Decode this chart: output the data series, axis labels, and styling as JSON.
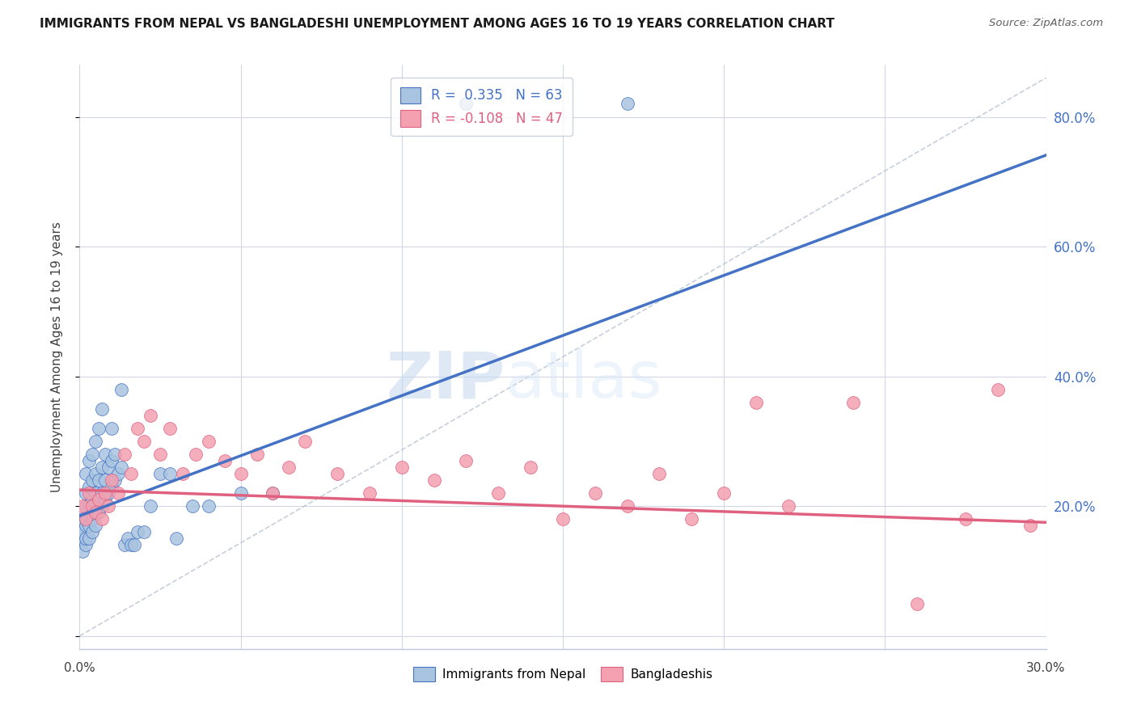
{
  "title": "IMMIGRANTS FROM NEPAL VS BANGLADESHI UNEMPLOYMENT AMONG AGES 16 TO 19 YEARS CORRELATION CHART",
  "source": "Source: ZipAtlas.com",
  "ylabel": "Unemployment Among Ages 16 to 19 years",
  "xmin": 0.0,
  "xmax": 0.3,
  "ymin": -0.02,
  "ymax": 0.88,
  "blue_R": 0.335,
  "blue_N": 63,
  "pink_R": -0.108,
  "pink_N": 47,
  "blue_color": "#a8c4e0",
  "pink_color": "#f4a0b0",
  "blue_trend_color": "#4472C4",
  "pink_trend_color": "#E06080",
  "ref_line_color": "#b8c4d4",
  "watermark_zip": "ZIP",
  "watermark_atlas": "atlas",
  "legend_label_blue": "Immigrants from Nepal",
  "legend_label_pink": "Bangladeshis",
  "blue_scatter_x": [
    0.001,
    0.001,
    0.001,
    0.001,
    0.002,
    0.002,
    0.002,
    0.002,
    0.002,
    0.002,
    0.002,
    0.003,
    0.003,
    0.003,
    0.003,
    0.003,
    0.004,
    0.004,
    0.004,
    0.004,
    0.004,
    0.005,
    0.005,
    0.005,
    0.005,
    0.005,
    0.006,
    0.006,
    0.006,
    0.006,
    0.007,
    0.007,
    0.007,
    0.007,
    0.008,
    0.008,
    0.008,
    0.009,
    0.009,
    0.01,
    0.01,
    0.01,
    0.011,
    0.011,
    0.012,
    0.013,
    0.013,
    0.014,
    0.015,
    0.016,
    0.017,
    0.018,
    0.02,
    0.022,
    0.025,
    0.028,
    0.03,
    0.035,
    0.04,
    0.05,
    0.06,
    0.12,
    0.17
  ],
  "blue_scatter_y": [
    0.13,
    0.15,
    0.16,
    0.18,
    0.14,
    0.15,
    0.17,
    0.18,
    0.2,
    0.22,
    0.25,
    0.15,
    0.17,
    0.2,
    0.23,
    0.27,
    0.16,
    0.18,
    0.21,
    0.24,
    0.28,
    0.17,
    0.19,
    0.22,
    0.25,
    0.3,
    0.19,
    0.21,
    0.24,
    0.32,
    0.2,
    0.22,
    0.26,
    0.35,
    0.21,
    0.24,
    0.28,
    0.22,
    0.26,
    0.23,
    0.27,
    0.32,
    0.24,
    0.28,
    0.25,
    0.26,
    0.38,
    0.14,
    0.15,
    0.14,
    0.14,
    0.16,
    0.16,
    0.2,
    0.25,
    0.25,
    0.15,
    0.2,
    0.2,
    0.22,
    0.22,
    0.82,
    0.82
  ],
  "pink_scatter_x": [
    0.001,
    0.002,
    0.003,
    0.004,
    0.005,
    0.006,
    0.007,
    0.008,
    0.009,
    0.01,
    0.012,
    0.014,
    0.016,
    0.018,
    0.02,
    0.022,
    0.025,
    0.028,
    0.032,
    0.036,
    0.04,
    0.045,
    0.05,
    0.055,
    0.06,
    0.065,
    0.07,
    0.08,
    0.09,
    0.1,
    0.11,
    0.12,
    0.13,
    0.14,
    0.15,
    0.16,
    0.17,
    0.18,
    0.19,
    0.2,
    0.21,
    0.22,
    0.24,
    0.26,
    0.275,
    0.285,
    0.295
  ],
  "pink_scatter_y": [
    0.2,
    0.18,
    0.22,
    0.2,
    0.19,
    0.21,
    0.18,
    0.22,
    0.2,
    0.24,
    0.22,
    0.28,
    0.25,
    0.32,
    0.3,
    0.34,
    0.28,
    0.32,
    0.25,
    0.28,
    0.3,
    0.27,
    0.25,
    0.28,
    0.22,
    0.26,
    0.3,
    0.25,
    0.22,
    0.26,
    0.24,
    0.27,
    0.22,
    0.26,
    0.18,
    0.22,
    0.2,
    0.25,
    0.18,
    0.22,
    0.36,
    0.2,
    0.36,
    0.05,
    0.18,
    0.38,
    0.17
  ],
  "blue_trend_x0": 0.0,
  "blue_trend_y0": 0.185,
  "blue_trend_x1": 0.17,
  "blue_trend_y1": 0.5,
  "pink_trend_x0": 0.0,
  "pink_trend_y0": 0.225,
  "pink_trend_x1": 0.3,
  "pink_trend_y1": 0.175
}
